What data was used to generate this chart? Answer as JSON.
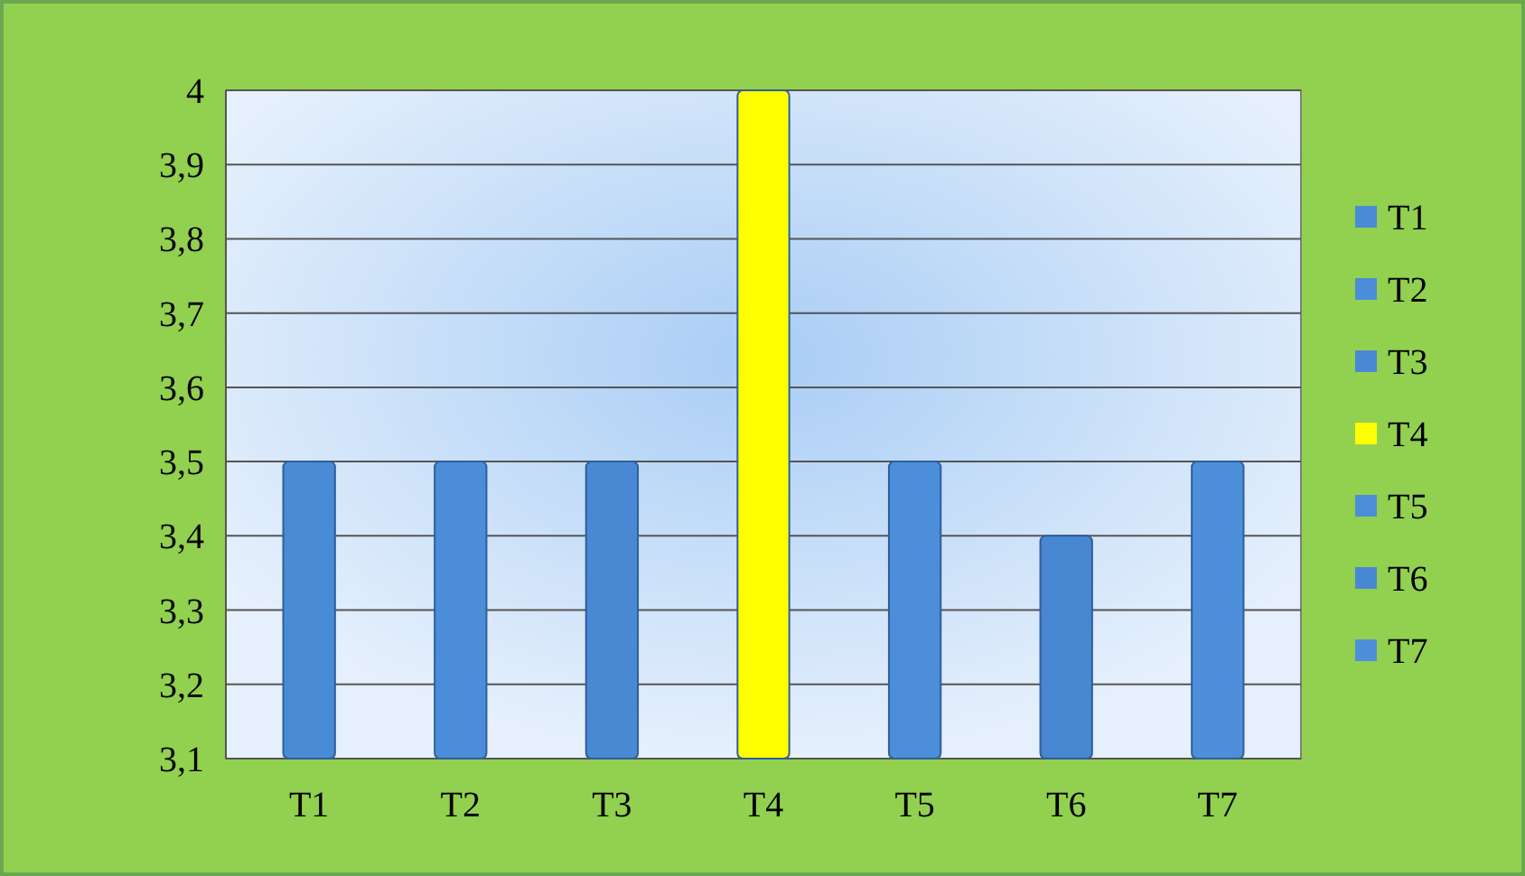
{
  "chart_data": {
    "type": "bar",
    "categories": [
      "T1",
      "T2",
      "T3",
      "T4",
      "T5",
      "T6",
      "T7"
    ],
    "series": [
      {
        "name": "T1",
        "color": "#4a8bd6",
        "values": [
          3.5,
          null,
          null,
          null,
          null,
          null,
          null
        ]
      },
      {
        "name": "T2",
        "color": "#4b8dd8",
        "values": [
          null,
          3.5,
          null,
          null,
          null,
          null,
          null
        ]
      },
      {
        "name": "T3",
        "color": "#4989d4",
        "values": [
          null,
          null,
          3.5,
          null,
          null,
          null,
          null
        ]
      },
      {
        "name": "T4",
        "color": "#ffff00",
        "values": [
          null,
          null,
          null,
          4,
          null,
          null,
          null
        ]
      },
      {
        "name": "T5",
        "color": "#4c8ed9",
        "values": [
          null,
          null,
          null,
          null,
          3.5,
          null,
          null
        ]
      },
      {
        "name": "T6",
        "color": "#4888d3",
        "values": [
          null,
          null,
          null,
          null,
          null,
          3.4,
          null
        ]
      },
      {
        "name": "T7",
        "color": "#4d8fda",
        "values": [
          null,
          null,
          null,
          null,
          null,
          null,
          3.5
        ]
      }
    ],
    "ylim": [
      3.1,
      4
    ],
    "yticks": [
      {
        "value": 3.1,
        "label": "3,1"
      },
      {
        "value": 3.2,
        "label": "3,2"
      },
      {
        "value": 3.3,
        "label": "3,3"
      },
      {
        "value": 3.4,
        "label": "3,4"
      },
      {
        "value": 3.5,
        "label": "3,5"
      },
      {
        "value": 3.6,
        "label": "3,6"
      },
      {
        "value": 3.7,
        "label": "3,7"
      },
      {
        "value": 3.8,
        "label": "3,8"
      },
      {
        "value": 3.9,
        "label": "3,9"
      },
      4
    ],
    "grid": "y",
    "legend": "right"
  }
}
